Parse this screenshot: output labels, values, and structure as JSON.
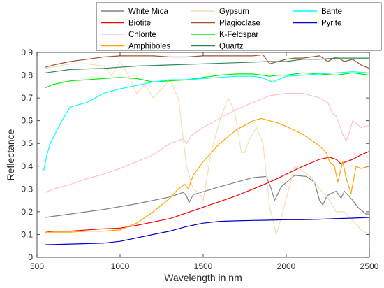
{
  "chart_data": {
    "type": "line",
    "xlabel": "Wavelength in nm",
    "ylabel": "Reflectance",
    "xlim": [
      500,
      2500
    ],
    "ylim": [
      0,
      0.9
    ],
    "xticks": [
      "500",
      "1000",
      "1500",
      "2000",
      "2500"
    ],
    "yticks": [
      "0",
      "0.1",
      "0.2",
      "0.3",
      "0.4",
      "0.5",
      "0.6",
      "0.7",
      "0.8",
      "0.9"
    ],
    "grid": false,
    "legend_position": "top-center",
    "series": [
      {
        "name": "White Mica",
        "color": "#808080",
        "x": [
          550,
          700,
          900,
          1100,
          1300,
          1380,
          1400,
          1415,
          1440,
          1600,
          1800,
          1880,
          1910,
          1930,
          1970,
          2050,
          2120,
          2170,
          2200,
          2220,
          2245,
          2270,
          2300,
          2330,
          2350,
          2400,
          2430,
          2480,
          2500
        ],
        "y": [
          0.175,
          0.19,
          0.21,
          0.235,
          0.265,
          0.285,
          0.27,
          0.24,
          0.275,
          0.31,
          0.35,
          0.355,
          0.3,
          0.25,
          0.31,
          0.36,
          0.355,
          0.33,
          0.25,
          0.23,
          0.27,
          0.28,
          0.29,
          0.26,
          0.29,
          0.25,
          0.22,
          0.19,
          0.19
        ]
      },
      {
        "name": "Biotite",
        "color": "#ff0000",
        "x": [
          550,
          600,
          700,
          900,
          1000,
          1100,
          1300,
          1500,
          1700,
          1900,
          2100,
          2200,
          2260,
          2300,
          2330,
          2360,
          2400,
          2450,
          2500
        ],
        "y": [
          0.11,
          0.115,
          0.115,
          0.125,
          0.128,
          0.14,
          0.17,
          0.22,
          0.27,
          0.33,
          0.4,
          0.43,
          0.44,
          0.43,
          0.41,
          0.42,
          0.43,
          0.45,
          0.465
        ]
      },
      {
        "name": "Chlorite",
        "color": "#ffc0cb",
        "x": [
          550,
          600,
          700,
          800,
          900,
          1000,
          1100,
          1200,
          1300,
          1380,
          1400,
          1430,
          1500,
          1600,
          1700,
          1800,
          1900,
          2000,
          2100,
          2200,
          2250,
          2280,
          2300,
          2320,
          2340,
          2360,
          2380,
          2400,
          2450,
          2500
        ],
        "y": [
          0.285,
          0.3,
          0.32,
          0.345,
          0.365,
          0.39,
          0.42,
          0.45,
          0.5,
          0.52,
          0.5,
          0.535,
          0.57,
          0.61,
          0.65,
          0.68,
          0.71,
          0.72,
          0.72,
          0.7,
          0.68,
          0.63,
          0.62,
          0.58,
          0.54,
          0.51,
          0.55,
          0.6,
          0.57,
          0.58
        ]
      },
      {
        "name": "Amphiboles",
        "color": "#ffa500",
        "x": [
          550,
          700,
          800,
          900,
          1000,
          1100,
          1200,
          1300,
          1350,
          1390,
          1410,
          1440,
          1500,
          1600,
          1700,
          1800,
          1850,
          1900,
          1950,
          2000,
          2100,
          2200,
          2240,
          2260,
          2290,
          2310,
          2340,
          2360,
          2390,
          2420,
          2450,
          2500
        ],
        "y": [
          0.11,
          0.11,
          0.115,
          0.115,
          0.12,
          0.15,
          0.2,
          0.26,
          0.3,
          0.32,
          0.3,
          0.36,
          0.42,
          0.5,
          0.56,
          0.6,
          0.61,
          0.6,
          0.59,
          0.575,
          0.54,
          0.49,
          0.46,
          0.42,
          0.4,
          0.33,
          0.42,
          0.35,
          0.28,
          0.4,
          0.39,
          0.4
        ]
      },
      {
        "name": "Gypsum",
        "color": "#f5deb3",
        "x": [
          550,
          700,
          800,
          900,
          950,
          1000,
          1050,
          1100,
          1150,
          1200,
          1250,
          1300,
          1350,
          1400,
          1440,
          1480,
          1500,
          1550,
          1600,
          1650,
          1690,
          1730,
          1750,
          1780,
          1820,
          1860,
          1900,
          1940,
          1980,
          2050,
          2100,
          2150,
          2200,
          2250,
          2300,
          2350,
          2400,
          2450,
          2500
        ],
        "y": [
          0.83,
          0.85,
          0.85,
          0.84,
          0.8,
          0.86,
          0.8,
          0.72,
          0.76,
          0.7,
          0.74,
          0.78,
          0.7,
          0.4,
          0.3,
          0.28,
          0.25,
          0.47,
          0.6,
          0.7,
          0.64,
          0.46,
          0.46,
          0.52,
          0.57,
          0.5,
          0.22,
          0.1,
          0.2,
          0.4,
          0.38,
          0.35,
          0.3,
          0.26,
          0.2,
          0.2,
          0.16,
          0.12,
          0.1
        ]
      },
      {
        "name": "Plagioclase",
        "color": "#a0522d",
        "x": [
          550,
          600,
          700,
          800,
          900,
          1000,
          1100,
          1200,
          1300,
          1400,
          1500,
          1600,
          1700,
          1800,
          1860,
          1900,
          1950,
          2000,
          2050,
          2100,
          2150,
          2200,
          2250,
          2300,
          2350,
          2400,
          2450,
          2500
        ],
        "y": [
          0.835,
          0.845,
          0.86,
          0.87,
          0.88,
          0.885,
          0.885,
          0.885,
          0.88,
          0.88,
          0.885,
          0.885,
          0.885,
          0.885,
          0.89,
          0.85,
          0.86,
          0.87,
          0.875,
          0.875,
          0.88,
          0.885,
          0.86,
          0.88,
          0.86,
          0.87,
          0.845,
          0.83
        ]
      },
      {
        "name": "K-Feldspar",
        "color": "#00ee00",
        "x": [
          550,
          600,
          700,
          800,
          900,
          1000,
          1100,
          1200,
          1300,
          1400,
          1500,
          1600,
          1700,
          1800,
          1900,
          1950,
          2000,
          2100,
          2200,
          2300,
          2400,
          2500
        ],
        "y": [
          0.745,
          0.76,
          0.775,
          0.78,
          0.785,
          0.79,
          0.785,
          0.77,
          0.775,
          0.78,
          0.79,
          0.8,
          0.805,
          0.805,
          0.795,
          0.8,
          0.8,
          0.81,
          0.805,
          0.8,
          0.81,
          0.8
        ]
      },
      {
        "name": "Quartz",
        "color": "#2e8b57",
        "x": [
          550,
          700,
          900,
          1100,
          1300,
          1500,
          1700,
          1900,
          2000,
          2100,
          2200,
          2300,
          2400,
          2500
        ],
        "y": [
          0.81,
          0.825,
          0.83,
          0.84,
          0.845,
          0.85,
          0.855,
          0.86,
          0.86,
          0.87,
          0.87,
          0.875,
          0.875,
          0.875
        ]
      },
      {
        "name": "Barite",
        "color": "#00ffff",
        "x": [
          540,
          560,
          580,
          600,
          650,
          700,
          750,
          800,
          900,
          1000,
          1100,
          1200,
          1300,
          1400,
          1500,
          1600,
          1700,
          1800,
          1850,
          1900,
          1920,
          1950,
          2000,
          2100,
          2200,
          2300,
          2400,
          2500
        ],
        "y": [
          0.38,
          0.45,
          0.5,
          0.53,
          0.6,
          0.66,
          0.67,
          0.68,
          0.72,
          0.74,
          0.755,
          0.77,
          0.78,
          0.78,
          0.785,
          0.79,
          0.795,
          0.795,
          0.79,
          0.775,
          0.77,
          0.78,
          0.795,
          0.8,
          0.805,
          0.81,
          0.815,
          0.81
        ]
      },
      {
        "name": "Pyrite",
        "color": "#0000cd",
        "x": [
          550,
          700,
          900,
          1000,
          1100,
          1200,
          1300,
          1400,
          1500,
          1600,
          1700,
          1800,
          1900,
          2000,
          2100,
          2200,
          2300,
          2400,
          2500
        ],
        "y": [
          0.055,
          0.058,
          0.062,
          0.07,
          0.085,
          0.1,
          0.115,
          0.135,
          0.15,
          0.158,
          0.16,
          0.162,
          0.163,
          0.165,
          0.165,
          0.167,
          0.17,
          0.172,
          0.175
        ]
      }
    ],
    "legend_columns": [
      [
        "White Mica",
        "Biotite",
        "Chlorite",
        "Amphiboles"
      ],
      [
        "Gypsum",
        "Plagioclase",
        "K-Feldspar",
        "Quartz"
      ],
      [
        "Barite",
        "Pyrite"
      ]
    ]
  }
}
